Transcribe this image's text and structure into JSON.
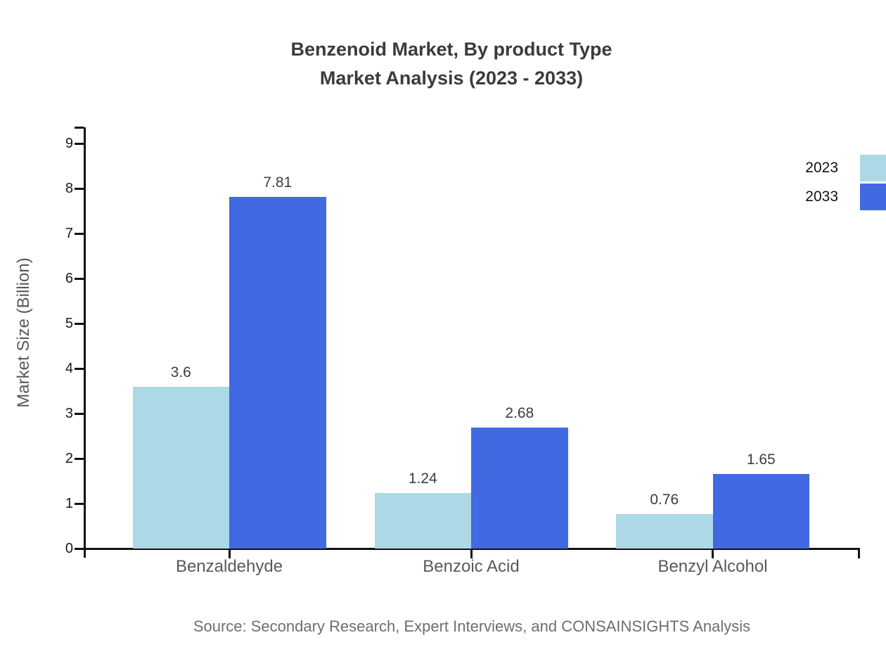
{
  "title": {
    "line1": "Benzenoid Market, By product Type",
    "line2": "Market Analysis (2023 - 2033)"
  },
  "source": "Source: Secondary Research, Expert Interviews, and CONSAINSIGHTS Analysis",
  "legend": {
    "entries": [
      "2023",
      "2033"
    ]
  },
  "colors": {
    "series_2023": "#add8e6",
    "series_2033": "#4169e1",
    "axis": "#111111",
    "title_text": "#3b3b3b",
    "category_text": "#595959",
    "source_text": "#6e6e6e"
  },
  "chart_data": {
    "type": "bar",
    "title": "Benzenoid Market, By product Type Market Analysis (2023 - 2033)",
    "categories": [
      "Benzaldehyde",
      "Benzoic Acid",
      "Benzyl Alcohol"
    ],
    "series": [
      {
        "name": "2023",
        "color": "#add8e6",
        "values": [
          3.6,
          1.24,
          0.76
        ],
        "labels": [
          "3.6",
          "1.24",
          "0.76"
        ]
      },
      {
        "name": "2033",
        "color": "#4169e1",
        "values": [
          7.81,
          2.68,
          1.65
        ],
        "labels": [
          "7.81",
          "2.68",
          "1.65"
        ]
      }
    ],
    "xlabel": "",
    "ylabel": "Market Size (Billion)",
    "yticks": [
      0,
      1,
      2,
      3,
      4,
      5,
      6,
      7,
      8,
      9
    ],
    "ylim": [
      0,
      9.36
    ],
    "grid": false,
    "legend_position": "top-right"
  }
}
